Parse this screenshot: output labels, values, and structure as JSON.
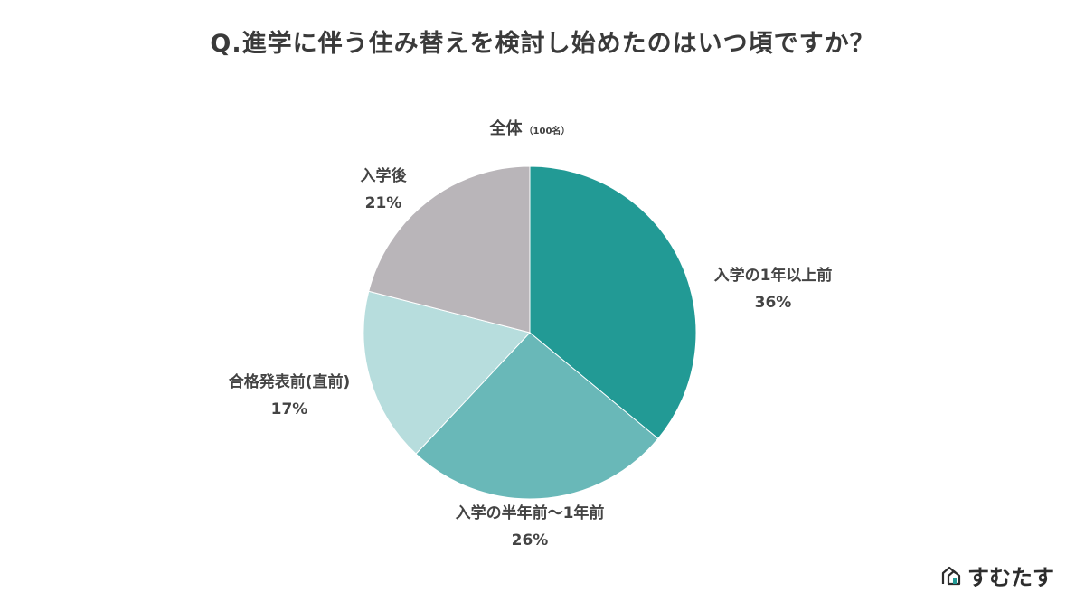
{
  "header": {
    "title": "Q.進学に伴う住み替えを検討し始めたのはいつ頃ですか？"
  },
  "chart_data": {
    "type": "pie",
    "title": "全体",
    "subtitle_note": "（100名）",
    "slices": [
      {
        "label": "入学の1年以上前",
        "value": 36,
        "value_label": "36%",
        "color": "#229a95"
      },
      {
        "label": "入学の半年前〜1年前",
        "value": 26,
        "value_label": "26%",
        "color": "#69b8b8"
      },
      {
        "label": "合格発表前(直前)",
        "value": 17,
        "value_label": "17%",
        "color": "#b7dddd"
      },
      {
        "label": "入学後",
        "value": 21,
        "value_label": "21%",
        "color": "#b9b5b9"
      }
    ]
  },
  "brand": {
    "name": "すむたす",
    "logo_icon": "house-logo-icon",
    "logo_color": "#2d2d2d",
    "accent": "#229a95"
  }
}
